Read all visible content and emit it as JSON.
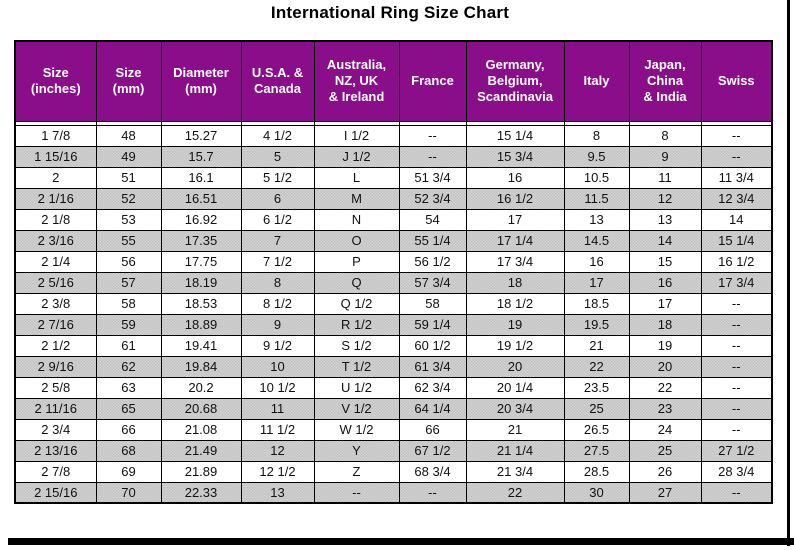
{
  "title": "International Ring Size Chart",
  "colors": {
    "header_bg": "#8A0E8A",
    "header_text": "#FFFFFF",
    "row_bg": "#FFFFFF",
    "row_alt_bg": "#C9C9C9",
    "border": "#000000",
    "cell_text": "#111111"
  },
  "chart_data": {
    "type": "table",
    "title": "International Ring Size Chart",
    "columns": [
      "Size\n(inches)",
      "Size\n(mm)",
      "Diameter\n(mm)",
      "U.S.A. &\nCanada",
      "Australia,\nNZ, UK\n& Ireland",
      "France",
      "Germany,\nBelgium,\nScandinavia",
      "Italy",
      "Japan,\nChina\n& India",
      "Swiss"
    ],
    "rows": [
      [
        "1 7/8",
        "48",
        "15.27",
        "4 1/2",
        "I 1/2",
        "--",
        "15 1/4",
        "8",
        "8",
        "--"
      ],
      [
        "1 15/16",
        "49",
        "15.7",
        "5",
        "J 1/2",
        "--",
        "15 3/4",
        "9.5",
        "9",
        "--"
      ],
      [
        "2",
        "51",
        "16.1",
        "5 1/2",
        "L",
        "51 3/4",
        "16",
        "10.5",
        "11",
        "11 3/4"
      ],
      [
        "2 1/16",
        "52",
        "16.51",
        "6",
        "M",
        "52 3/4",
        "16 1/2",
        "11.5",
        "12",
        "12 3/4"
      ],
      [
        "2 1/8",
        "53",
        "16.92",
        "6 1/2",
        "N",
        "54",
        "17",
        "13",
        "13",
        "14"
      ],
      [
        "2 3/16",
        "55",
        "17.35",
        "7",
        "O",
        "55 1/4",
        "17 1/4",
        "14.5",
        "14",
        "15 1/4"
      ],
      [
        "2 1/4",
        "56",
        "17.75",
        "7 1/2",
        "P",
        "56 1/2",
        "17 3/4",
        "16",
        "15",
        "16 1/2"
      ],
      [
        "2 5/16",
        "57",
        "18.19",
        "8",
        "Q",
        "57 3/4",
        "18",
        "17",
        "16",
        "17 3/4"
      ],
      [
        "2 3/8",
        "58",
        "18.53",
        "8 1/2",
        "Q 1/2",
        "58",
        "18 1/2",
        "18.5",
        "17",
        "--"
      ],
      [
        "2 7/16",
        "59",
        "18.89",
        "9",
        "R 1/2",
        "59 1/4",
        "19",
        "19.5",
        "18",
        "--"
      ],
      [
        "2 1/2",
        "61",
        "19.41",
        "9 1/2",
        "S 1/2",
        "60 1/2",
        "19 1/2",
        "21",
        "19",
        "--"
      ],
      [
        "2 9/16",
        "62",
        "19.84",
        "10",
        "T 1/2",
        "61 3/4",
        "20",
        "22",
        "20",
        "--"
      ],
      [
        "2 5/8",
        "63",
        "20.2",
        "10 1/2",
        "U 1/2",
        "62 3/4",
        "20 1/4",
        "23.5",
        "22",
        "--"
      ],
      [
        "2 11/16",
        "65",
        "20.68",
        "11",
        "V 1/2",
        "64 1/4",
        "20 3/4",
        "25",
        "23",
        "--"
      ],
      [
        "2 3/4",
        "66",
        "21.08",
        "11 1/2",
        "W 1/2",
        "66",
        "21",
        "26.5",
        "24",
        "--"
      ],
      [
        "2 13/16",
        "68",
        "21.49",
        "12",
        "Y",
        "67 1/2",
        "21 1/4",
        "27.5",
        "25",
        "27 1/2"
      ],
      [
        "2 7/8",
        "69",
        "21.89",
        "12 1/2",
        "Z",
        "68 3/4",
        "21 3/4",
        "28.5",
        "26",
        "28 3/4"
      ],
      [
        "2 15/16",
        "70",
        "22.33",
        "13",
        "--",
        "--",
        "22",
        "30",
        "27",
        "--"
      ]
    ]
  }
}
